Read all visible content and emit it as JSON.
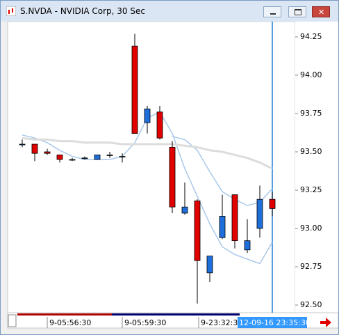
{
  "window": {
    "title": "S.NVDA - NVIDIA Corp, 30 Sec"
  },
  "chart_data": {
    "type": "candlestick",
    "open": [
      93.55,
      93.55,
      93.5,
      93.48,
      93.45,
      93.46,
      93.45,
      93.48,
      93.47,
      94.19,
      93.69,
      93.76,
      93.53,
      93.1,
      93.18,
      92.71,
      92.94,
      93.22,
      92.86,
      93.0,
      93.19
    ],
    "high": [
      93.58,
      93.55,
      93.52,
      93.48,
      93.46,
      93.47,
      93.48,
      93.5,
      93.49,
      94.27,
      93.8,
      93.8,
      93.57,
      93.3,
      93.19,
      92.82,
      93.22,
      93.22,
      93.06,
      93.28,
      93.24
    ],
    "low": [
      93.53,
      93.44,
      93.48,
      93.43,
      93.44,
      93.45,
      93.45,
      93.46,
      93.43,
      93.62,
      93.62,
      93.58,
      93.1,
      93.09,
      92.51,
      92.65,
      92.93,
      92.87,
      92.84,
      92.94,
      93.08
    ],
    "close": [
      93.55,
      93.49,
      93.49,
      93.45,
      93.45,
      93.46,
      93.48,
      93.48,
      93.47,
      93.62,
      93.78,
      93.59,
      93.14,
      93.14,
      92.79,
      92.82,
      93.08,
      92.92,
      92.92,
      93.19,
      93.13
    ],
    "up_color": "#1e6fd9",
    "down_color": "#e00000",
    "overlays": [
      {
        "color": "#a9c8ea",
        "values": [
          93.61,
          93.59,
          93.56,
          93.51,
          93.47,
          93.45,
          93.45,
          93.45,
          93.47,
          93.56,
          93.72,
          93.76,
          93.62,
          93.39,
          93.21,
          93.03,
          92.88,
          92.83,
          92.8,
          92.77,
          92.91
        ]
      },
      {
        "color": "#a9c8ea",
        "values": [
          null,
          null,
          null,
          null,
          null,
          null,
          null,
          null,
          null,
          null,
          null,
          null,
          93.6,
          93.58,
          93.51,
          93.37,
          93.24,
          93.19,
          93.15,
          93.17,
          93.26
        ]
      },
      {
        "color": "#dcdcdc",
        "values": [
          93.59,
          93.58,
          93.58,
          93.57,
          93.57,
          93.56,
          93.56,
          93.56,
          93.55,
          93.55,
          93.55,
          93.55,
          93.55,
          93.54,
          93.53,
          93.51,
          93.5,
          93.48,
          93.46,
          93.43,
          93.39
        ]
      }
    ],
    "x_labels": [
      "9-05:56:30",
      "9-05:59:30",
      "9-23:32:30",
      "12-09-16 23:35:30"
    ],
    "ylim": [
      92.45,
      94.35
    ],
    "yticks": [
      {
        "value": 92.5,
        "label": "92.50"
      },
      92.75,
      {
        "value": 93,
        "label": "93.00"
      },
      93.25,
      {
        "value": 93.5,
        "label": "93.50"
      },
      93.75,
      {
        "value": 94,
        "label": "94.00"
      },
      94.25
    ]
  }
}
